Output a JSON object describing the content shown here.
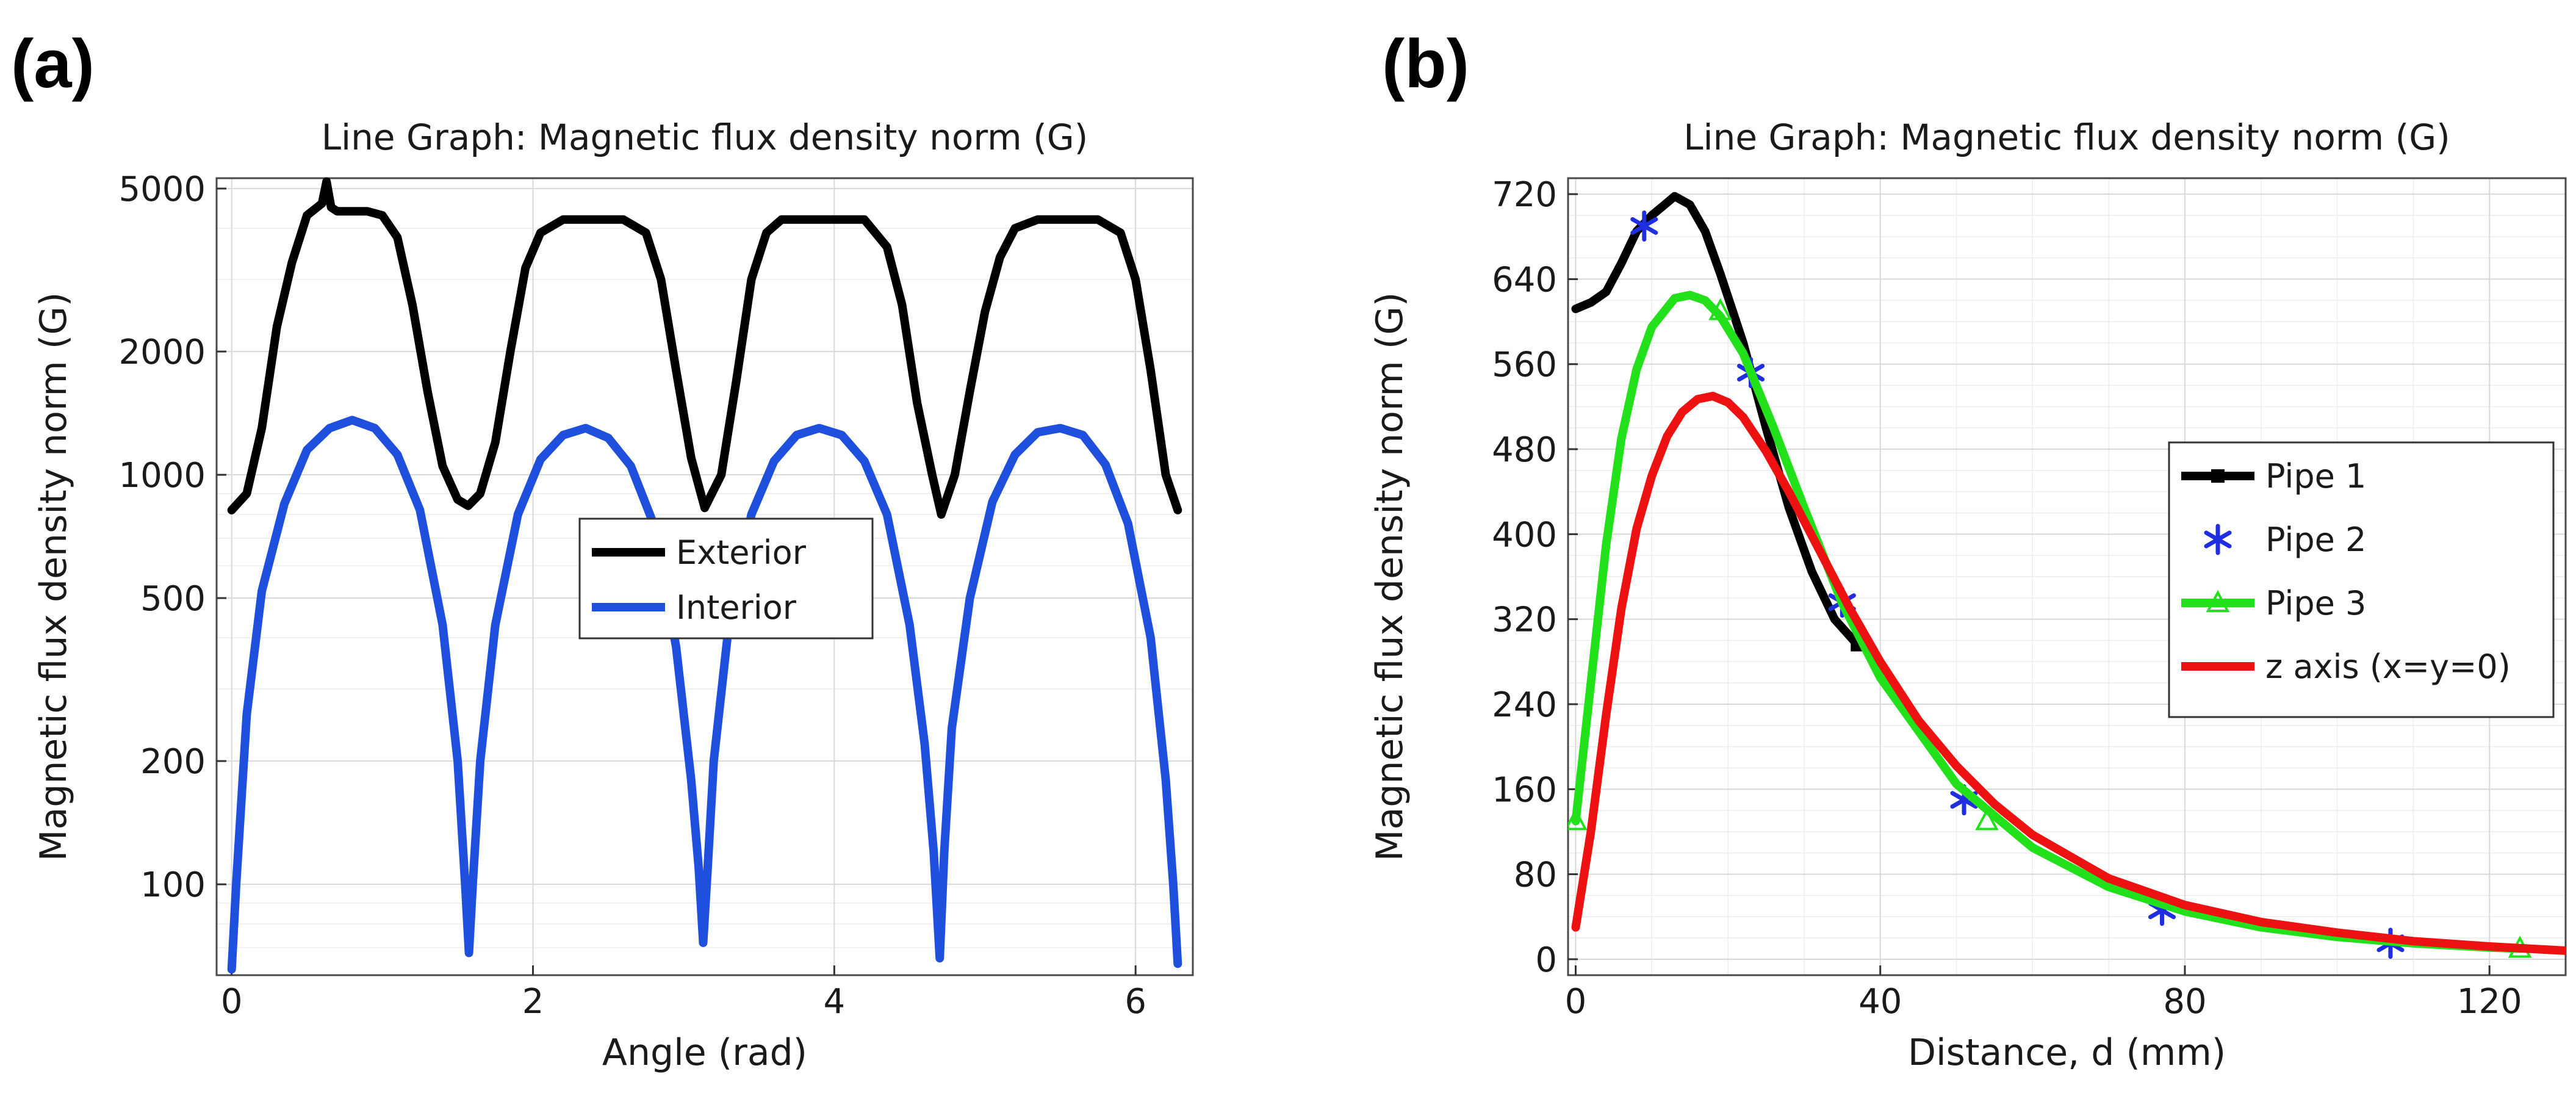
{
  "panels": {
    "a": "(a)",
    "b": "(b)"
  },
  "chart_data": [
    {
      "type": "line",
      "panel": "(a)",
      "title": "Line Graph: Magnetic flux density norm (G)",
      "xlabel": "Angle (rad)",
      "ylabel": "Magnetic flux density norm (G)",
      "yscale": "log",
      "xlim": [
        -0.1,
        6.38
      ],
      "ylim": [
        60,
        5300
      ],
      "xticks": [
        0,
        2,
        4,
        6
      ],
      "xtick_labels": [
        "0",
        "2",
        "4",
        "6"
      ],
      "yticks": [
        100,
        200,
        500,
        1000,
        2000,
        5000
      ],
      "ytick_labels": [
        "100",
        "200",
        "500",
        "1000",
        "2000",
        "5000"
      ],
      "grid": true,
      "legend_position": "center",
      "series": [
        {
          "name": "Exterior",
          "color": "#000000",
          "x": [
            0.0,
            0.1,
            0.2,
            0.3,
            0.4,
            0.5,
            0.6,
            0.63,
            0.66,
            0.7,
            0.8,
            0.9,
            1.0,
            1.1,
            1.2,
            1.3,
            1.4,
            1.5,
            1.57,
            1.65,
            1.75,
            1.85,
            1.95,
            2.05,
            2.2,
            2.4,
            2.6,
            2.75,
            2.85,
            2.95,
            3.05,
            3.14,
            3.25,
            3.35,
            3.45,
            3.55,
            3.65,
            3.8,
            4.0,
            4.2,
            4.35,
            4.45,
            4.55,
            4.65,
            4.71,
            4.8,
            4.9,
            5.0,
            5.1,
            5.2,
            5.35,
            5.55,
            5.75,
            5.9,
            6.0,
            6.1,
            6.2,
            6.28
          ],
          "y": [
            820,
            900,
            1300,
            2300,
            3300,
            4300,
            4600,
            5200,
            4500,
            4400,
            4400,
            4400,
            4300,
            3800,
            2600,
            1600,
            1050,
            870,
            840,
            900,
            1200,
            2000,
            3200,
            3900,
            4200,
            4200,
            4200,
            3900,
            3000,
            1800,
            1100,
            830,
            1000,
            1700,
            3000,
            3900,
            4200,
            4200,
            4200,
            4200,
            3600,
            2600,
            1500,
            1000,
            800,
            1000,
            1600,
            2500,
            3400,
            4000,
            4200,
            4200,
            4200,
            3900,
            3000,
            1800,
            1000,
            820
          ]
        },
        {
          "name": "Interior",
          "color": "#1f4fdd",
          "x": [
            0.0,
            0.03,
            0.1,
            0.2,
            0.35,
            0.5,
            0.65,
            0.8,
            0.95,
            1.1,
            1.25,
            1.4,
            1.5,
            1.55,
            1.575,
            1.6,
            1.65,
            1.75,
            1.9,
            2.05,
            2.2,
            2.35,
            2.5,
            2.65,
            2.8,
            2.95,
            3.05,
            3.1,
            3.13,
            3.16,
            3.2,
            3.3,
            3.45,
            3.6,
            3.75,
            3.9,
            4.05,
            4.2,
            4.35,
            4.5,
            4.6,
            4.66,
            4.7,
            4.73,
            4.78,
            4.9,
            5.05,
            5.2,
            5.35,
            5.5,
            5.65,
            5.8,
            5.95,
            6.1,
            6.2,
            6.25,
            6.28
          ],
          "y": [
            62,
            100,
            260,
            520,
            850,
            1150,
            1300,
            1360,
            1300,
            1120,
            820,
            430,
            200,
            100,
            68,
            100,
            200,
            430,
            800,
            1090,
            1250,
            1300,
            1230,
            1050,
            760,
            380,
            180,
            110,
            72,
            110,
            200,
            430,
            800,
            1080,
            1250,
            1300,
            1250,
            1080,
            800,
            430,
            220,
            120,
            66,
            120,
            240,
            500,
            860,
            1120,
            1270,
            1300,
            1250,
            1060,
            760,
            400,
            180,
            100,
            64
          ]
        }
      ]
    },
    {
      "type": "line",
      "panel": "(b)",
      "title": "Line Graph: Magnetic flux density norm (G)",
      "xlabel": "Distance, d (mm)",
      "ylabel": "Magnetic flux density norm (G)",
      "xlim": [
        -1,
        130
      ],
      "ylim": [
        -15,
        735
      ],
      "xticks": [
        0,
        40,
        80,
        120
      ],
      "xtick_labels": [
        "0",
        "40",
        "80",
        "120"
      ],
      "yticks": [
        0,
        80,
        160,
        240,
        320,
        400,
        480,
        560,
        640,
        720
      ],
      "ytick_labels": [
        "0",
        "80",
        "160",
        "240",
        "320",
        "400",
        "480",
        "560",
        "640",
        "720"
      ],
      "grid": true,
      "legend_position": "right",
      "series": [
        {
          "name": "Pipe 1",
          "color": "#000000",
          "marker": "square",
          "x": [
            0,
            2,
            4,
            6,
            8,
            10,
            12,
            13,
            15,
            17,
            19,
            22,
            25,
            28,
            31,
            34,
            37
          ],
          "y": [
            612,
            618,
            628,
            655,
            685,
            700,
            712,
            718,
            710,
            685,
            645,
            580,
            500,
            425,
            365,
            320,
            296
          ],
          "marker_x": [
            37
          ],
          "marker_y": [
            296
          ]
        },
        {
          "name": "Pipe 2",
          "color": "#1f2fe0",
          "marker": "asterisk",
          "x": [
            9,
            23,
            35,
            51,
            77,
            107
          ],
          "y": [
            690,
            552,
            336,
            150,
            46,
            15
          ]
        },
        {
          "name": "Pipe 3",
          "color": "#22e01a",
          "marker": "triangle",
          "x": [
            0,
            2,
            4,
            6,
            8,
            10,
            13,
            15,
            17,
            19,
            22,
            26,
            30,
            35,
            40,
            50,
            60,
            70,
            80,
            90,
            100,
            110,
            120,
            124
          ],
          "y": [
            130,
            260,
            390,
            490,
            555,
            595,
            622,
            625,
            620,
            605,
            570,
            500,
            425,
            335,
            265,
            165,
            105,
            68,
            45,
            30,
            21,
            15,
            11,
            10
          ],
          "marker_x": [
            0,
            19,
            54,
            124
          ],
          "marker_y": [
            130,
            610,
            130,
            10
          ]
        },
        {
          "name": "z axis (x=y=0)",
          "color": "#ee1111",
          "x": [
            0,
            2,
            4,
            6,
            8,
            10,
            12,
            14,
            16,
            18,
            20,
            22,
            25,
            28,
            32,
            36,
            40,
            45,
            50,
            55,
            60,
            70,
            80,
            90,
            100,
            110,
            120,
            130
          ],
          "y": [
            30,
            120,
            230,
            330,
            405,
            455,
            492,
            515,
            527,
            530,
            524,
            510,
            478,
            440,
            385,
            330,
            280,
            225,
            182,
            146,
            117,
            76,
            51,
            35,
            25,
            17,
            12,
            8
          ]
        }
      ]
    }
  ]
}
